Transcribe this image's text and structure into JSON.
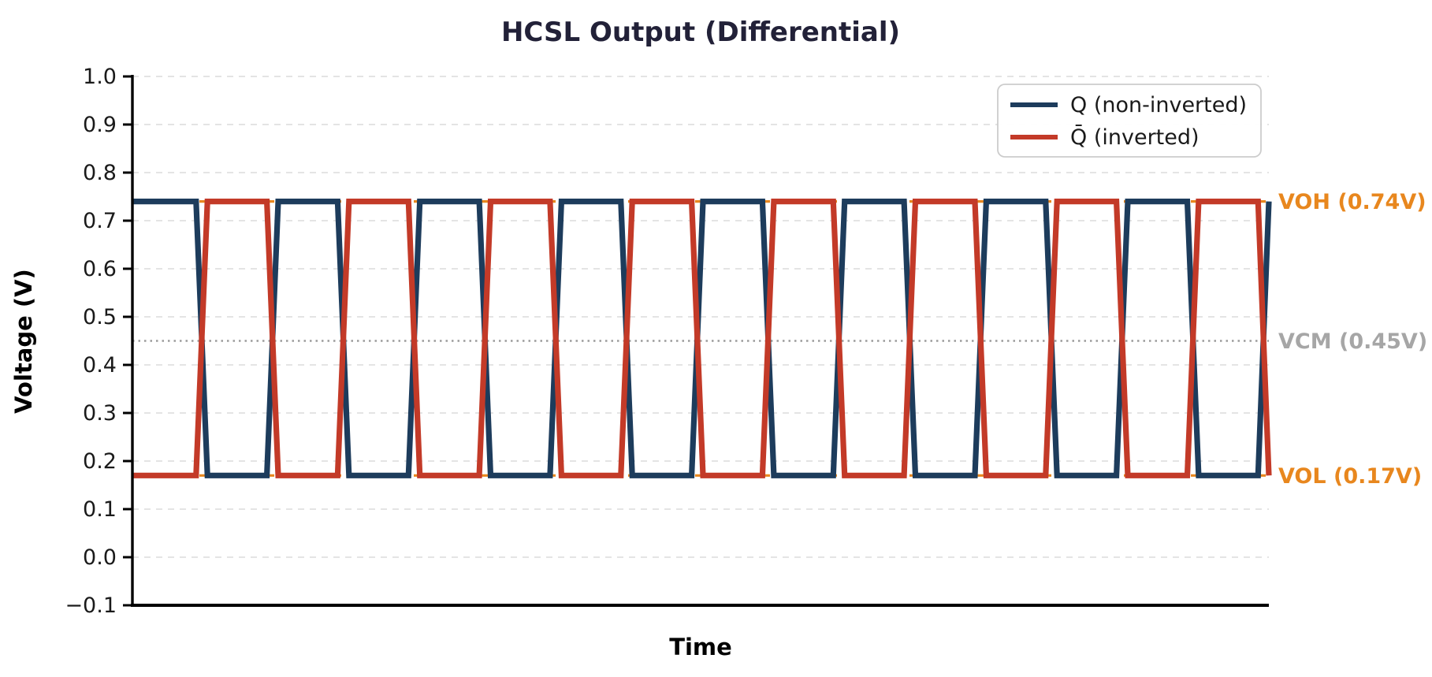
{
  "colors": {
    "background": "#ffffff",
    "title": "#222138",
    "axis_text": "#1a1a1a",
    "spine": "#000000",
    "grid": "#dcdcdc",
    "q_blue": "#1d3c5c",
    "qbar_red": "#c33a28",
    "ref_orange": "#e8871e",
    "ref_gray": "#9c9c9c",
    "vcm_text": "#a6a6a6",
    "legend_border": "#cccccc"
  },
  "chart_data": {
    "type": "line",
    "title": "HCSL Output (Differential)",
    "xlabel": "Time",
    "ylabel": "Voltage (V)",
    "ylim": [
      -0.1,
      1.0
    ],
    "yticks": [
      -0.1,
      0.0,
      0.1,
      0.2,
      0.3,
      0.4,
      0.5,
      0.6,
      0.7,
      0.8,
      0.9,
      1.0
    ],
    "ytick_labels": [
      "−0.1",
      "0.0",
      "0.1",
      "0.2",
      "0.3",
      "0.4",
      "0.5",
      "0.6",
      "0.7",
      "0.8",
      "0.9",
      "1.0"
    ],
    "grid": "horizontal dashed",
    "legend_position": "upper right",
    "series": [
      {
        "name": "Q (non-inverted)",
        "color": "#1d3c5c",
        "shape": "square-wave",
        "start_level": "high"
      },
      {
        "name": "Q̄ (inverted)",
        "color": "#c33a28",
        "shape": "square-wave",
        "start_level": "low"
      }
    ],
    "waveform": {
      "voh": 0.74,
      "vol": 0.17,
      "vcm": 0.45,
      "periods_visible": 8,
      "duty_cycle": 0.5,
      "first_crossing_frac": 0.061,
      "crossing_spacing_frac": 0.0623,
      "num_crossings": 16,
      "transition_halfwidth_frac": 0.005
    },
    "reference_lines": [
      {
        "id": "voh",
        "label": "VOH (0.74V)",
        "value": 0.74,
        "color": "#e8871e",
        "style": "dashed"
      },
      {
        "id": "vcm",
        "label": "VCM (0.45V)",
        "value": 0.45,
        "color": "#9c9c9c",
        "style": "dotted"
      },
      {
        "id": "vol",
        "label": "VOL (0.17V)",
        "value": 0.17,
        "color": "#e8871e",
        "style": "dashed"
      }
    ]
  },
  "layout_note": "single plot, no x tick labels"
}
